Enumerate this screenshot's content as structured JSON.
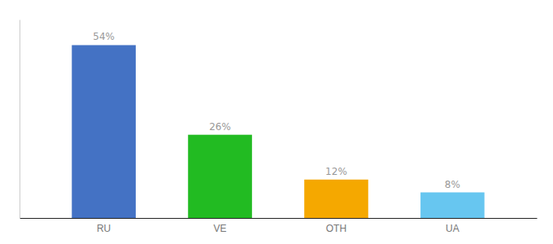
{
  "chart_data": {
    "type": "bar",
    "categories": [
      "RU",
      "VE",
      "OTH",
      "UA"
    ],
    "values": [
      54,
      26,
      12,
      8
    ],
    "value_labels": [
      "54%",
      "26%",
      "12%",
      "8%"
    ],
    "colors": [
      "#4472c4",
      "#22bb22",
      "#f5a800",
      "#67c6f0"
    ],
    "data_labels": true,
    "ylim": [
      0,
      62
    ],
    "tick_labels": "x",
    "grid": false
  }
}
